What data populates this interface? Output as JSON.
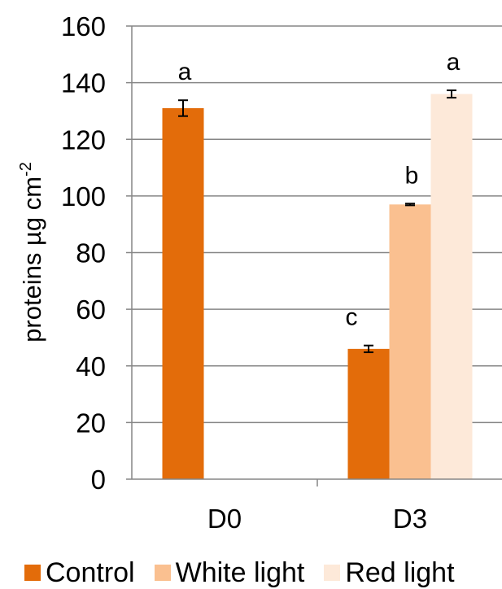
{
  "chart_data": {
    "type": "bar",
    "title": "",
    "xlabel": "",
    "ylabel": "proteins µg cm",
    "ylabel_superscript": "-2",
    "ylim": [
      0,
      160
    ],
    "yticks": [
      "0",
      "20",
      "40",
      "60",
      "80",
      "100",
      "120",
      "140",
      "160"
    ],
    "categories": [
      "D0",
      "D3"
    ],
    "grid": true,
    "legend_position": "bottom",
    "series": [
      {
        "name": "Control",
        "color": "#E36C0A",
        "values": [
          131,
          46
        ],
        "errors": [
          2.8,
          1.2
        ],
        "labels": [
          "a",
          "c"
        ]
      },
      {
        "name": "White light",
        "color": "#FAC090",
        "values": [
          null,
          97
        ],
        "errors": [
          null,
          0.3
        ],
        "labels": [
          null,
          "b"
        ]
      },
      {
        "name": "Red light",
        "color": "#FDE9D9",
        "values": [
          null,
          136
        ],
        "errors": [
          null,
          1.3
        ],
        "labels": [
          null,
          "a"
        ]
      }
    ]
  }
}
